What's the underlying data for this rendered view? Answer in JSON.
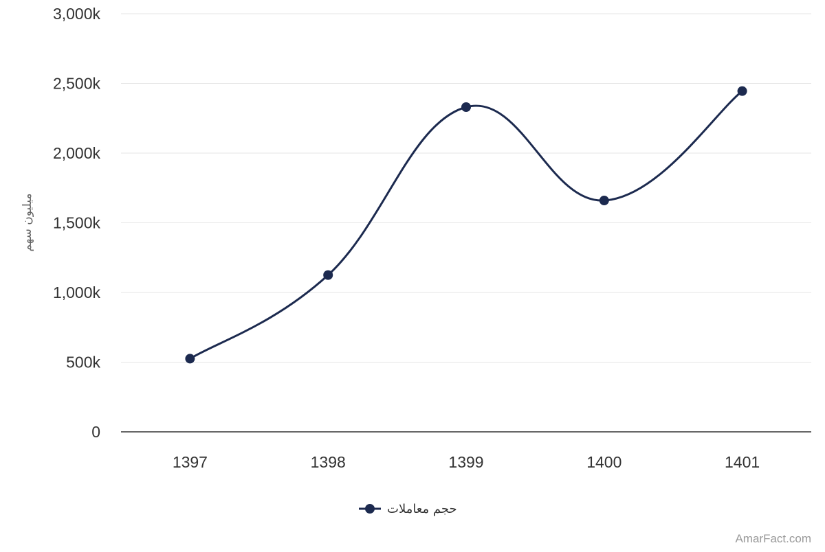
{
  "chart_data": {
    "type": "line",
    "smooth": true,
    "categories": [
      "1397",
      "1398",
      "1399",
      "1400",
      "1401"
    ],
    "series": [
      {
        "name": "حجم معاملات",
        "values": [
          525,
          1125,
          2330,
          1660,
          2445
        ],
        "color": "#1c2a4f"
      }
    ],
    "ylabel": "میلیون سهم",
    "xlabel": "",
    "ylim": [
      0,
      3000
    ],
    "yticks": [
      0,
      500,
      1000,
      1500,
      2000,
      2500,
      3000
    ],
    "ytick_labels": [
      "0",
      "500k",
      "1,000k",
      "1,500k",
      "2,000k",
      "2,500k",
      "3,000k"
    ],
    "grid": true,
    "legend": "bottom-center",
    "colors": {
      "grid": "#e6e6e6",
      "axis": "#333333",
      "series": "#1c2a4f"
    }
  },
  "credit": "AmarFact.com"
}
